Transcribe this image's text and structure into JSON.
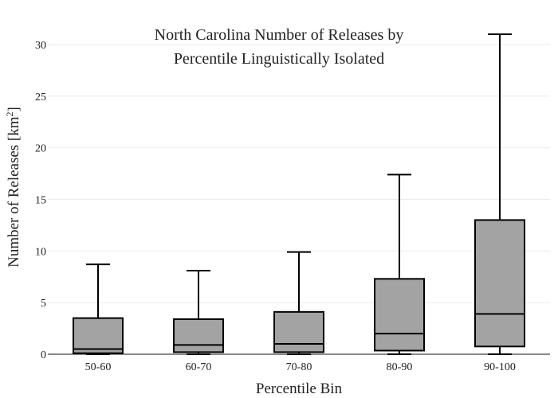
{
  "chart_data": {
    "type": "box",
    "title": [
      "North Carolina Number of Releases by",
      "Percentile Linguistically Isolated"
    ],
    "xlabel": "Percentile Bin",
    "ylabel_main": "Number of Releases  [km",
    "ylabel_sup": "2",
    "ylabel_end": "]",
    "ylim": [
      0,
      31
    ],
    "yticks": [
      0,
      5,
      10,
      15,
      20,
      25,
      30
    ],
    "grid": true,
    "box_color": "#a3a3a3",
    "categories": [
      "50-60",
      "60-70",
      "70-80",
      "80-90",
      "90-100"
    ],
    "boxes": [
      {
        "category": "50-60",
        "min": 0,
        "q1": 0.1,
        "median": 0.5,
        "q3": 3.5,
        "max": 8.7
      },
      {
        "category": "60-70",
        "min": 0,
        "q1": 0.2,
        "median": 0.9,
        "q3": 3.4,
        "max": 8.1
      },
      {
        "category": "70-80",
        "min": 0,
        "q1": 0.2,
        "median": 1.0,
        "q3": 4.1,
        "max": 9.9
      },
      {
        "category": "80-90",
        "min": 0,
        "q1": 0.35,
        "median": 2.0,
        "q3": 7.3,
        "max": 17.4
      },
      {
        "category": "90-100",
        "min": 0,
        "q1": 0.75,
        "median": 3.9,
        "q3": 13.0,
        "max": 31.0
      }
    ]
  }
}
